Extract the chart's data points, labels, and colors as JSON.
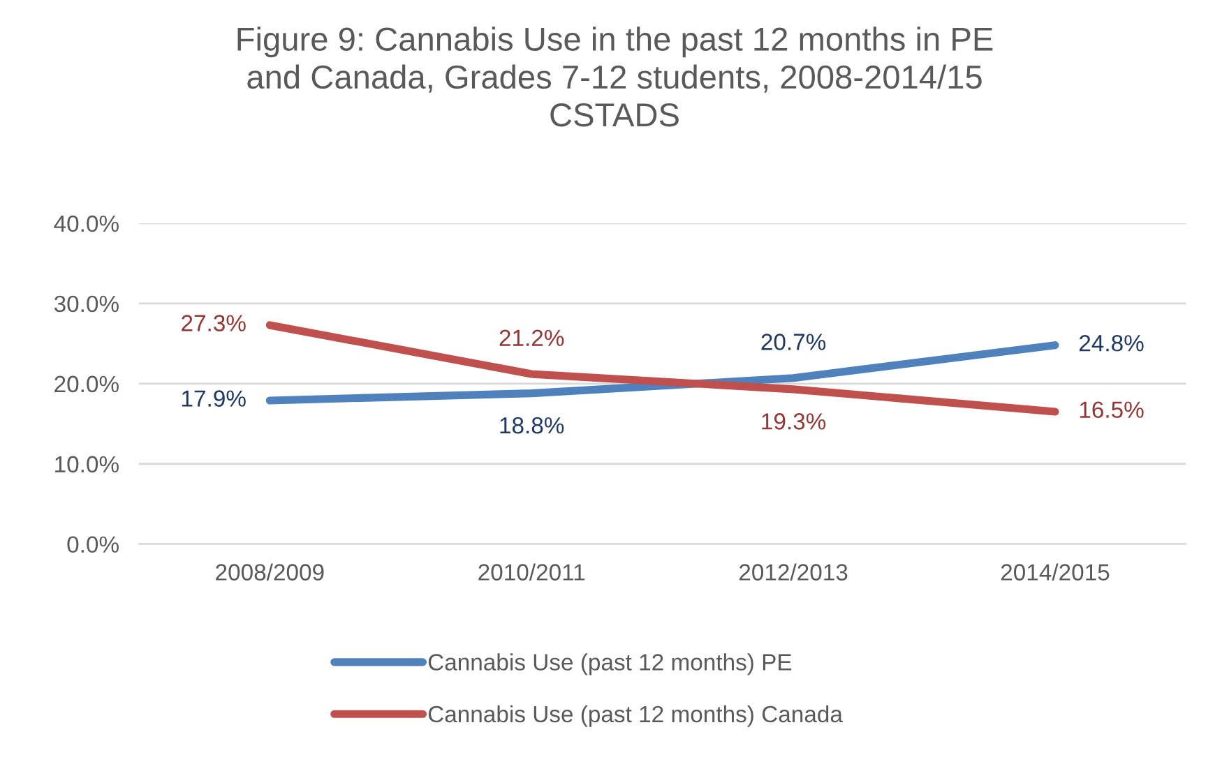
{
  "chart_data": {
    "type": "line",
    "title": "Figure 9: Cannabis Use in the past 12 months in PE\nand Canada, Grades 7-12 students, 2008-2014/15\nCSTADS",
    "categories": [
      "2008/2009",
      "2010/2011",
      "2012/2013",
      "2014/2015"
    ],
    "series": [
      {
        "name": "Cannabis Use (past 12 months) PE",
        "color": "#4f81bd",
        "values": [
          17.9,
          18.8,
          20.7,
          24.8
        ],
        "value_labels": [
          "17.9%",
          "18.8%",
          "20.7%",
          "24.8%"
        ]
      },
      {
        "name": "Cannabis Use (past 12 months) Canada",
        "color": "#c0504d",
        "values": [
          27.3,
          21.2,
          19.3,
          16.5
        ],
        "value_labels": [
          "27.3%",
          "21.2%",
          "19.3%",
          "16.5%"
        ]
      }
    ],
    "ylim": [
      0,
      40
    ],
    "yticks": [
      {
        "value": 0,
        "label": "0.0%"
      },
      {
        "value": 10,
        "label": "10.0%"
      },
      {
        "value": 20,
        "label": "20.0%"
      },
      {
        "value": 30,
        "label": "30.0%"
      },
      {
        "value": 40,
        "label": "40.0%"
      }
    ],
    "grid": "y",
    "legend": "bottom",
    "marker": "none",
    "line_style": "solid"
  }
}
